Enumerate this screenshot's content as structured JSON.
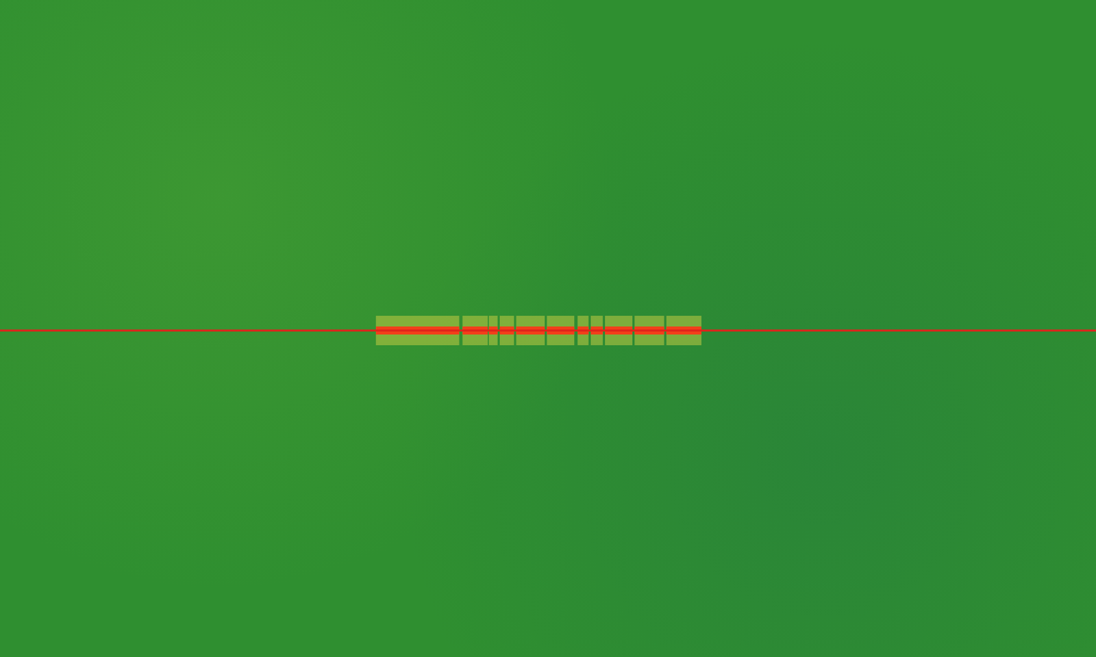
{
  "chart_data": {
    "type": "spectrogram",
    "xlim": [
      0,
      100
    ],
    "ylim": [
      0,
      100
    ],
    "tick_labels": false,
    "grid": false,
    "carrier": {
      "frequency": 49.7,
      "color": "#e0231b"
    },
    "bursts": {
      "color": "#f2401a",
      "frequency": 49.7,
      "segments": [
        [
          34.3,
          41.9
        ],
        [
          42.2,
          44.5
        ],
        [
          44.6,
          45.4
        ],
        [
          45.6,
          46.9
        ],
        [
          47.1,
          49.7
        ],
        [
          49.9,
          52.4
        ],
        [
          52.7,
          53.7
        ],
        [
          53.9,
          55.0
        ],
        [
          55.2,
          57.7
        ],
        [
          57.9,
          60.6
        ],
        [
          60.8,
          64.0
        ]
      ]
    }
  }
}
